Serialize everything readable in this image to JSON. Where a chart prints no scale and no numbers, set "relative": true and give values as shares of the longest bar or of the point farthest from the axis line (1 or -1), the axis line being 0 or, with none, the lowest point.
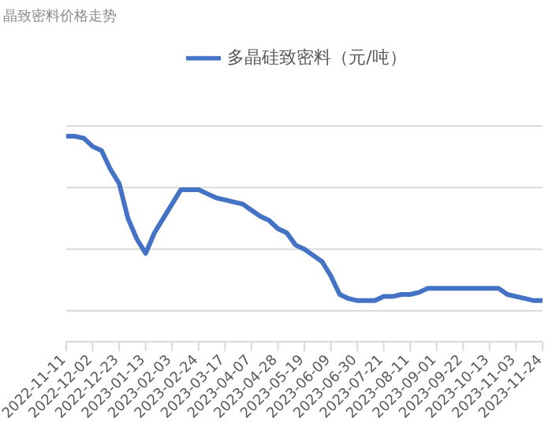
{
  "chart_data": {
    "type": "line",
    "title": "晶致密料价格走势",
    "relative": true,
    "grid": "y",
    "legend": "top",
    "marker": "none",
    "categories": [
      "2022-11-11",
      null,
      null,
      "2022-12-02",
      null,
      null,
      "2022-12-23",
      null,
      null,
      "2023-01-13",
      null,
      null,
      "2023-02-03",
      null,
      null,
      "2023-02-24",
      null,
      null,
      "2023-03-17",
      null,
      null,
      "2023-04-07",
      null,
      null,
      "2023-04-28",
      null,
      null,
      "2023-05-19",
      null,
      null,
      "2023-06-09",
      null,
      null,
      "2023-06-30",
      null,
      null,
      "2023-07-21",
      null,
      null,
      "2023-08-11",
      null,
      null,
      "2023-09-01",
      null,
      null,
      "2023-09-22",
      null,
      null,
      "2023-10-13",
      null,
      null,
      "2023-11-03",
      null,
      null,
      "2023-11-24"
    ],
    "series": [
      {
        "name": "多晶硅致密料（元/吨）",
        "color": "#4472c4",
        "values": [
          1,
          1,
          0.99,
          0.95,
          0.93,
          0.84,
          0.77,
          0.6,
          0.5,
          0.43,
          0.53,
          0.6,
          0.67,
          0.74,
          0.74,
          0.74,
          0.72,
          0.7,
          0.69,
          0.68,
          0.67,
          0.64,
          0.61,
          0.59,
          0.55,
          0.53,
          0.47,
          0.45,
          0.42,
          0.39,
          0.32,
          0.23,
          0.21,
          0.2,
          0.2,
          0.2,
          0.22,
          0.22,
          0.23,
          0.23,
          0.24,
          0.26,
          0.26,
          0.26,
          0.26,
          0.26,
          0.26,
          0.26,
          0.26,
          0.26,
          0.23,
          0.22,
          0.21,
          0.2,
          0.2
        ]
      }
    ]
  }
}
